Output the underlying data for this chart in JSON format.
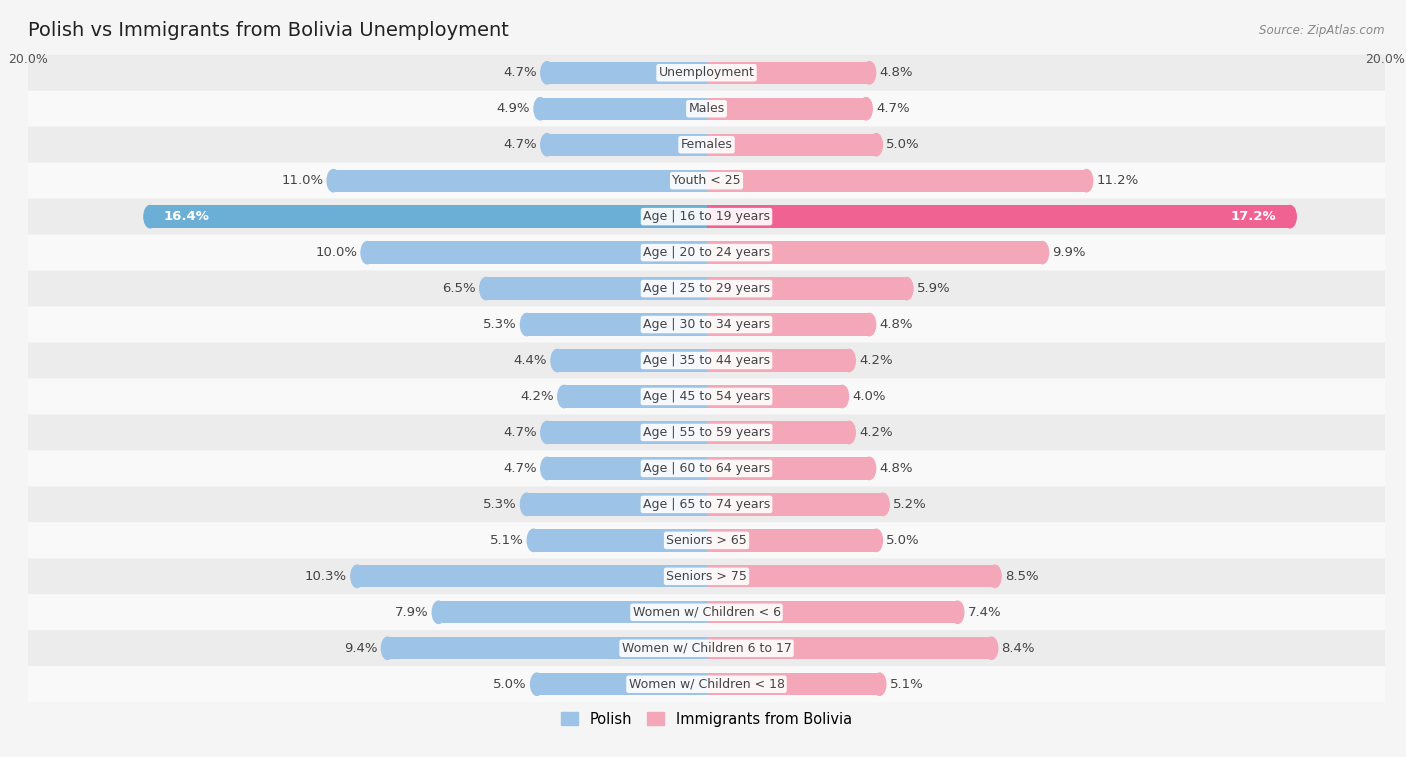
{
  "title": "Polish vs Immigrants from Bolivia Unemployment",
  "source": "Source: ZipAtlas.com",
  "categories": [
    "Unemployment",
    "Males",
    "Females",
    "Youth < 25",
    "Age | 16 to 19 years",
    "Age | 20 to 24 years",
    "Age | 25 to 29 years",
    "Age | 30 to 34 years",
    "Age | 35 to 44 years",
    "Age | 45 to 54 years",
    "Age | 55 to 59 years",
    "Age | 60 to 64 years",
    "Age | 65 to 74 years",
    "Seniors > 65",
    "Seniors > 75",
    "Women w/ Children < 6",
    "Women w/ Children 6 to 17",
    "Women w/ Children < 18"
  ],
  "polish_values": [
    4.7,
    4.9,
    4.7,
    11.0,
    16.4,
    10.0,
    6.5,
    5.3,
    4.4,
    4.2,
    4.7,
    4.7,
    5.3,
    5.1,
    10.3,
    7.9,
    9.4,
    5.0
  ],
  "bolivia_values": [
    4.8,
    4.7,
    5.0,
    11.2,
    17.2,
    9.9,
    5.9,
    4.8,
    4.2,
    4.0,
    4.2,
    4.8,
    5.2,
    5.0,
    8.5,
    7.4,
    8.4,
    5.1
  ],
  "polish_color": "#9dc3e6",
  "bolivia_color": "#f4a7b9",
  "polish_highlight_color": "#6baed6",
  "bolivia_highlight_color": "#f06292",
  "row_even_color": "#ececec",
  "row_odd_color": "#f9f9f9",
  "background_color": "#f5f5f5",
  "xlim": 20.0,
  "bar_height": 0.62,
  "label_fontsize": 9.5,
  "category_fontsize": 9.0,
  "title_fontsize": 14,
  "legend_labels": [
    "Polish",
    "Immigrants from Bolivia"
  ]
}
